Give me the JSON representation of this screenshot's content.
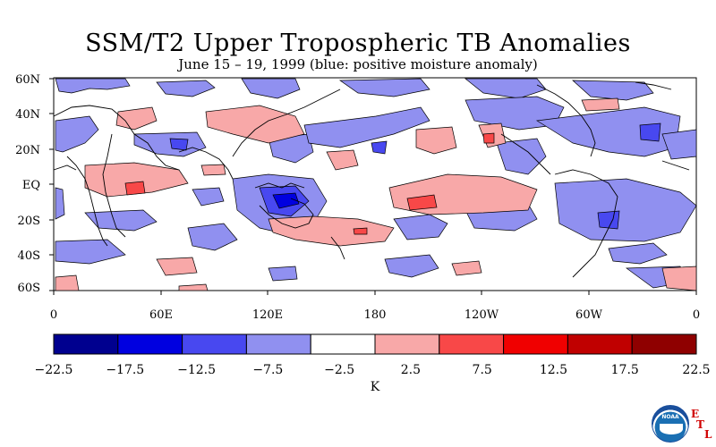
{
  "title": "SSM/T2 Upper Tropospheric TB Anomalies",
  "subtitle": "June 15 – 19, 1999 (blue: positive moisture anomaly)",
  "lat_labels": [
    "60N",
    "40N",
    "20N",
    "EQ",
    "20S",
    "40S",
    "60S"
  ],
  "lon_labels": [
    "0",
    "60E",
    "120E",
    "180",
    "120W",
    "60W",
    "0"
  ],
  "colorbar": {
    "unit": "K",
    "tick_labels": [
      "−22.5",
      "−17.5",
      "−12.5",
      "−7.5",
      "−2.5",
      "2.5",
      "7.5",
      "12.5",
      "17.5",
      "22.5"
    ],
    "colors": [
      "#00008f",
      "#0000e0",
      "#4848f0",
      "#9090f0",
      "#ffffff",
      "#f8a8a8",
      "#f84848",
      "#f00000",
      "#c00000",
      "#8f0000"
    ]
  },
  "logo": {
    "text": "NOAA",
    "letters": [
      "E",
      "T",
      "L"
    ]
  }
}
